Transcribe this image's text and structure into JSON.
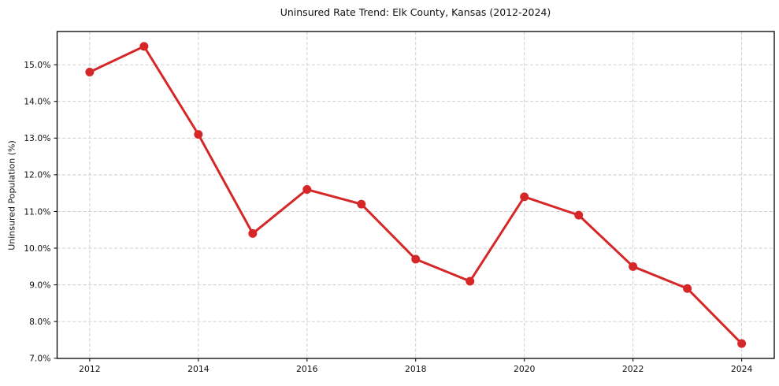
{
  "chart_data": {
    "type": "line",
    "title": "Uninsured Rate Trend: Elk County, Kansas (2012-2024)",
    "xlabel": "",
    "ylabel": "Uninsured Population (%)",
    "x": [
      2012,
      2013,
      2014,
      2015,
      2016,
      2017,
      2018,
      2019,
      2020,
      2021,
      2022,
      2023,
      2024
    ],
    "values": [
      14.8,
      15.5,
      13.1,
      10.4,
      11.6,
      11.2,
      9.7,
      9.1,
      11.4,
      10.9,
      9.5,
      8.9,
      7.4
    ],
    "x_ticks": [
      2012,
      2014,
      2016,
      2018,
      2020,
      2022,
      2024
    ],
    "x_tick_labels": [
      "2012",
      "2014",
      "2016",
      "2018",
      "2020",
      "2022",
      "2024"
    ],
    "y_ticks": [
      7,
      8,
      9,
      10,
      11,
      12,
      13,
      14,
      15
    ],
    "y_tick_labels": [
      "7.0%",
      "8.0%",
      "9.0%",
      "10.0%",
      "11.0%",
      "12.0%",
      "13.0%",
      "14.0%",
      "15.0%"
    ],
    "xlim": [
      2011.4,
      2024.6
    ],
    "ylim": [
      6.995,
      15.905
    ],
    "grid": true,
    "grid_style": "dashed",
    "legend": false,
    "marker": "circle",
    "colors": {
      "line": "#d62728",
      "marker": "#d62728",
      "grid": "#c9c9c9",
      "spine": "#000000",
      "background": "#ffffff"
    }
  }
}
